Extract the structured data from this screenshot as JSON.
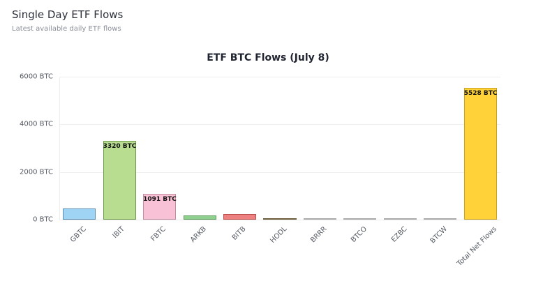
{
  "header": {
    "title": "Single Day ETF Flows",
    "subtitle": "Latest available daily ETF flows"
  },
  "chart_data": {
    "type": "bar",
    "title": "ETF BTC Flows (July 8)",
    "xlabel": "",
    "ylabel": "",
    "ylim": [
      0,
      6000
    ],
    "yticks": [
      "0 BTC",
      "2000 BTC",
      "4000 BTC",
      "6000 BTC"
    ],
    "grid": true,
    "legend": null,
    "categories": [
      "GBTC",
      "IBIT",
      "FBTC",
      "ARKB",
      "BITB",
      "HODL",
      "BRRR",
      "BTCO",
      "EZBC",
      "BTCW",
      "Total Net Flows"
    ],
    "values": [
      460,
      3320,
      1091,
      180,
      230,
      30,
      5,
      5,
      5,
      5,
      5528
    ],
    "data_labels": [
      "",
      "3320 BTC",
      "1091 BTC",
      "",
      "",
      "",
      "",
      "",
      "",
      "",
      "5528 BTC"
    ],
    "colors": [
      "#9fd4f5",
      "#b8dc90",
      "#f8c1d6",
      "#8fd08f",
      "#ee8080",
      "#8a7a5a",
      "#c9c9c9",
      "#c9c9c9",
      "#c9c9c9",
      "#c9c9c9",
      "#ffd23a"
    ],
    "border_colors": [
      "#5a8db0",
      "#6f9a4a",
      "#c08ca0",
      "#5a9a5a",
      "#b85050",
      "#6a5a3a",
      "#aaaaaa",
      "#aaaaaa",
      "#aaaaaa",
      "#aaaaaa",
      "#c9a020"
    ]
  }
}
